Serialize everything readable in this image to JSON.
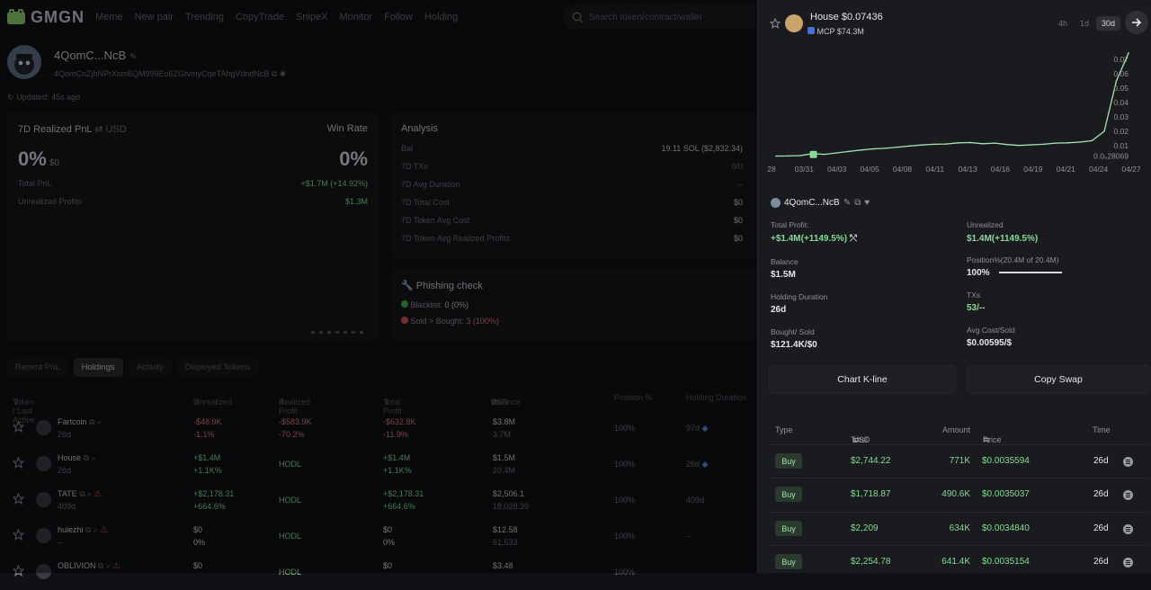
{
  "nav": {
    "logo": "GMGN",
    "items": [
      "Meme",
      "New pair",
      "Trending",
      "CopyTrade",
      "SnipeX",
      "Monitor",
      "Follow",
      "Holding"
    ],
    "search_placeholder": "Search token/contract/wallet"
  },
  "profile": {
    "name": "4QomC...NcB",
    "address": "4QomCnZjhNPrXsm6QM999Eo6ZGtvmyCqeTAhgVdndNcB",
    "updated": "Updated: 45s ago"
  },
  "pnl_card": {
    "title": "7D Realized PnL",
    "currency": "USD",
    "win_rate_label": "Win Rate",
    "pnl_pct": "0%",
    "pnl_usd": "$0",
    "win_rate": "0%",
    "total_pnl_label": "Total PnL",
    "total_pnl": "+$1.7M (+14.92%)",
    "unrealized_label": "Unrealized Profits",
    "unrealized": "$1.3M"
  },
  "analysis": {
    "title": "Analysis",
    "rows": [
      {
        "label": "Bal",
        "value": "19.11 SOL ($2,832.34)"
      },
      {
        "label": "7D TXs",
        "value": "0/0"
      },
      {
        "label": "7D Avg Duration",
        "value": "--"
      },
      {
        "label": "7D Total Cost",
        "value": "$0"
      },
      {
        "label": "7D Token Avg Cost",
        "value": "$0"
      },
      {
        "label": "7D Token Avg Realized Profits",
        "value": "$0"
      }
    ]
  },
  "phishing": {
    "title": "Phishing check",
    "blacklist_label": "Blacklist:",
    "blacklist_value": "0 (0%)",
    "sold_label": "Sold > Bought:",
    "sold_value": "3 (100%)"
  },
  "tabs": [
    "Recent PnL",
    "Holdings",
    "Activity",
    "Deployed Tokens"
  ],
  "table": {
    "headers": {
      "token": "Token / Last Active",
      "unrealized": "Unrealized",
      "realized": "Realized Profit",
      "total": "Total Profit",
      "balance": "Balance",
      "balance_unit": "USD",
      "position": "Position %",
      "duration": "Holding Duration"
    },
    "rows": [
      {
        "name": "Fartcoin",
        "age": "26d",
        "unreal": "-$48.9K",
        "unreal_pct": "-1.1%",
        "realized": "-$583.9K",
        "realized_pct": "-70.2%",
        "total": "-$632.8K",
        "total_pct": "-11.9%",
        "bal": "$3.8M",
        "bal_amt": "3.7M",
        "pos": "100%",
        "dur": "97d",
        "warn": false
      },
      {
        "name": "House",
        "age": "26d",
        "unreal": "+$1.4M",
        "unreal_pct": "+1.1K%",
        "realized": "HODL",
        "realized_pct": "",
        "total": "+$1.4M",
        "total_pct": "+1.1K%",
        "bal": "$1.5M",
        "bal_amt": "20.4M",
        "pos": "100%",
        "dur": "26d",
        "warn": false
      },
      {
        "name": "TATE",
        "age": "409d",
        "unreal": "+$2,178.31",
        "unreal_pct": "+664.6%",
        "realized": "HODL",
        "realized_pct": "",
        "total": "+$2,178.31",
        "total_pct": "+664.6%",
        "bal": "$2,506.1",
        "bal_amt": "18,028.39",
        "pos": "100%",
        "dur": "409d",
        "warn": true
      },
      {
        "name": "hulezhi",
        "age": "--",
        "unreal": "$0",
        "unreal_pct": "0%",
        "realized": "HODL",
        "realized_pct": "",
        "total": "$0",
        "total_pct": "0%",
        "bal": "$12.58",
        "bal_amt": "61,533",
        "pos": "100%",
        "dur": "--",
        "warn": true
      },
      {
        "name": "OBLIVION",
        "age": "",
        "unreal": "$0",
        "unreal_pct": "",
        "realized": "HODL",
        "realized_pct": "",
        "total": "$0",
        "total_pct": "",
        "bal": "$3.48",
        "bal_amt": "",
        "pos": "100%",
        "dur": "",
        "warn": true
      }
    ]
  },
  "panel": {
    "token_name": "House",
    "token_price": "$0.07436",
    "mcp": "MCP $74.3M",
    "ranges": [
      "4h",
      "1d",
      "30d"
    ],
    "active_range": "30d",
    "wallet": "4QomC...NcB",
    "stats": {
      "total_profit_label": "Total Profit:",
      "total_profit": "+$1.4M(+1149.5%)",
      "unrealized_label": "Unrealized",
      "unrealized": "$1.4M(+1149.5%)",
      "balance_label": "Balance",
      "balance": "$1.5M",
      "position_label": "Position%(20.4M of 20.4M)",
      "position": "100%",
      "position_fraction": 1.0,
      "holding_label": "Holding Duration",
      "holding": "26d",
      "txs_label": "TXs",
      "txs": "53/--",
      "bought_label": "Bought/ Sold",
      "bought": "$121.4K/$0",
      "avg_label": "Avg Cost/Sold",
      "avg": "$0.00595/$"
    },
    "chart_btn": "Chart K-line",
    "swap_btn": "Copy Swap",
    "trades_header": {
      "type": "Type",
      "total": "Total",
      "unit": "USD",
      "amount": "Amount",
      "price": "Price",
      "time": "Time"
    },
    "trades": [
      {
        "type": "Buy",
        "total": "$2,744.22",
        "amount": "771K",
        "price": "$0.0035594",
        "time": "26d"
      },
      {
        "type": "Buy",
        "total": "$1,718.87",
        "amount": "490.6K",
        "price": "$0.0035037",
        "time": "26d"
      },
      {
        "type": "Buy",
        "total": "$2,209",
        "amount": "634K",
        "price": "$0.0034840",
        "time": "26d"
      },
      {
        "type": "Buy",
        "total": "$2,254.78",
        "amount": "641.4K",
        "price": "$0.0035154",
        "time": "26d"
      }
    ]
  },
  "chart_data": {
    "type": "line",
    "x_ticks": [
      "28",
      "03/31",
      "04/03",
      "04/05",
      "04/08",
      "04/11",
      "04/13",
      "04/16",
      "04/19",
      "04/21",
      "04/24",
      "04/27"
    ],
    "y_ticks": [
      "0.0₅28069",
      "0.01",
      "0.02",
      "0.03",
      "0.04",
      "0.05",
      "0.06",
      "0.07"
    ],
    "ylim": [
      0,
      0.075
    ],
    "x": [
      "03/29",
      "03/30",
      "03/31",
      "04/01",
      "04/02",
      "04/03",
      "04/04",
      "04/05",
      "04/06",
      "04/07",
      "04/08",
      "04/09",
      "04/10",
      "04/11",
      "04/12",
      "04/13",
      "04/14",
      "04/15",
      "04/16",
      "04/17",
      "04/18",
      "04/19",
      "04/20",
      "04/21",
      "04/22",
      "04/23",
      "04/24",
      "04/25",
      "04/26",
      "04/27"
    ],
    "values": [
      0.0028,
      0.0029,
      0.0031,
      0.0045,
      0.004,
      0.005,
      0.006,
      0.007,
      0.0078,
      0.0082,
      0.009,
      0.0098,
      0.0105,
      0.011,
      0.0112,
      0.012,
      0.0122,
      0.0114,
      0.0118,
      0.0108,
      0.0102,
      0.0106,
      0.011,
      0.0118,
      0.012,
      0.0125,
      0.0135,
      0.02,
      0.055,
      0.0744
    ],
    "color": "#a7e3b0",
    "grid": false
  }
}
